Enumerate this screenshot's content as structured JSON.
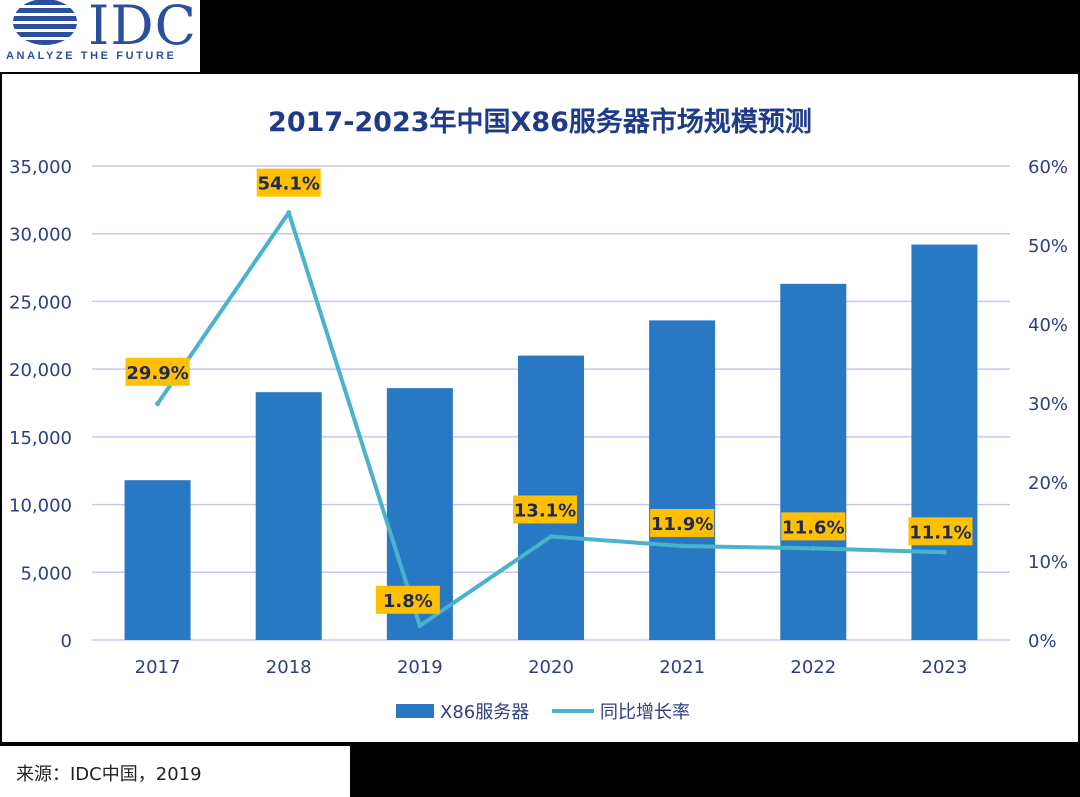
{
  "logo": {
    "text": "IDC",
    "tagline": "ANALYZE THE FUTURE",
    "color": "#2a4f9e"
  },
  "footer": {
    "source": "来源：IDC中国，2019"
  },
  "chart_data": {
    "type": "bar",
    "title": "2017-2023年中国X86服务器市场规模预测",
    "categories": [
      "2017",
      "2018",
      "2019",
      "2020",
      "2021",
      "2022",
      "2023"
    ],
    "series": [
      {
        "name": "X86服务器",
        "type": "bar",
        "axis": "left",
        "color": "#2878c3",
        "values": [
          11800,
          18300,
          18600,
          21000,
          23600,
          26300,
          29200
        ]
      },
      {
        "name": "同比增长率",
        "type": "line",
        "axis": "right",
        "color": "#49b3c9",
        "values": [
          29.9,
          54.1,
          1.8,
          13.1,
          11.9,
          11.6,
          11.1
        ],
        "labels": [
          "29.9%",
          "54.1%",
          "1.8%",
          "13.1%",
          "11.9%",
          "11.6%",
          "11.1%"
        ]
      }
    ],
    "y_left": {
      "range": [
        0,
        35000
      ],
      "ticks": [
        0,
        5000,
        10000,
        15000,
        20000,
        25000,
        30000,
        35000
      ],
      "tick_labels": [
        "0",
        "5,000",
        "10,000",
        "15,000",
        "20,000",
        "25,000",
        "30,000",
        "35,000"
      ]
    },
    "y_right": {
      "range": [
        0,
        60
      ],
      "ticks": [
        0,
        10,
        20,
        30,
        40,
        50,
        60
      ],
      "tick_labels": [
        "0%",
        "10%",
        "20%",
        "30%",
        "40%",
        "50%",
        "60%"
      ]
    },
    "grid": true,
    "legend_position": "bottom",
    "label_box_color": "#ffc000"
  }
}
